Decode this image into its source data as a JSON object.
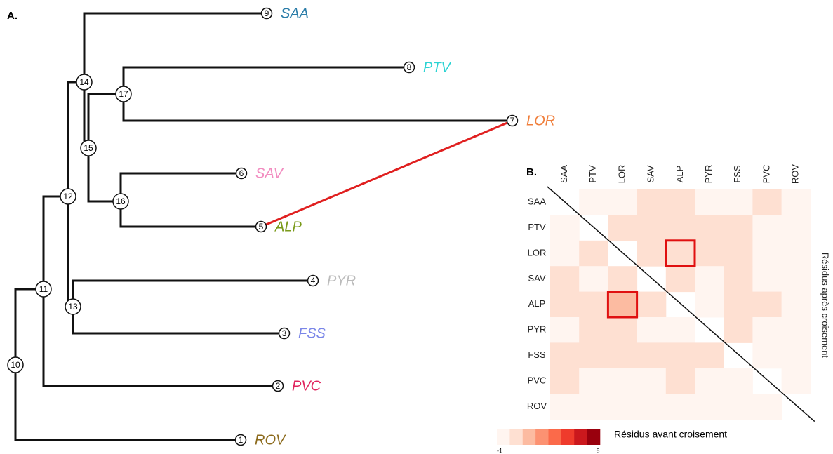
{
  "panel_a": {
    "label": "A.",
    "nodes": [
      {
        "label": "10"
      },
      {
        "label": "11"
      },
      {
        "label": "12"
      },
      {
        "label": "13"
      },
      {
        "label": "14"
      },
      {
        "label": "15"
      },
      {
        "label": "16"
      },
      {
        "label": "17"
      }
    ],
    "leaves": [
      {
        "number": "9",
        "name": "SAA",
        "color": "#2a7ca8"
      },
      {
        "number": "8",
        "name": "PTV",
        "color": "#2cd3d3"
      },
      {
        "number": "7",
        "name": "LOR",
        "color": "#f07f3c"
      },
      {
        "number": "6",
        "name": "SAV",
        "color": "#f28cc0"
      },
      {
        "number": "5",
        "name": "ALP",
        "color": "#7a9a1a"
      },
      {
        "number": "4",
        "name": "PYR",
        "color": "#bbbbbb"
      },
      {
        "number": "3",
        "name": "FSS",
        "color": "#7a86e8"
      },
      {
        "number": "2",
        "name": "PVC",
        "color": "#e0245e"
      },
      {
        "number": "1",
        "name": "ROV",
        "color": "#8c6a1c"
      }
    ]
  },
  "panel_b": {
    "label": "B.",
    "columns": [
      "SAA",
      "PTV",
      "LOR",
      "SAV",
      "ALP",
      "PYR",
      "FSS",
      "PVC",
      "ROV"
    ],
    "rows": [
      "SAA",
      "PTV",
      "LOR",
      "SAV",
      "ALP",
      "PYR",
      "FSS",
      "PVC",
      "ROV"
    ],
    "values": [
      [
        null,
        -1,
        -1,
        0,
        0,
        -1,
        -1,
        0,
        -1
      ],
      [
        -1,
        null,
        0,
        0,
        0,
        0,
        0,
        -1,
        -1
      ],
      [
        -1,
        0,
        null,
        0,
        0,
        0,
        0,
        -1,
        -1
      ],
      [
        0,
        -1,
        0,
        null,
        0,
        -1,
        0,
        -1,
        -1
      ],
      [
        0,
        0,
        1,
        0,
        null,
        -1,
        0,
        0,
        -1
      ],
      [
        -1,
        0,
        0,
        -1,
        -1,
        null,
        0,
        -1,
        -1
      ],
      [
        0,
        0,
        0,
        0,
        0,
        0,
        null,
        -1,
        -1
      ],
      [
        0,
        -1,
        -1,
        -1,
        0,
        -1,
        -1,
        null,
        -1
      ],
      [
        -1,
        -1,
        -1,
        -1,
        -1,
        -1,
        -1,
        -1,
        null
      ]
    ],
    "right_label": "Résidus après croisement",
    "legend_label": "Résidus avant croisement",
    "scale": {
      "min": -1,
      "max": 6,
      "colors": [
        "#fff5f0",
        "#fee0d2",
        "#fcbba1",
        "#fc9272",
        "#fb6a4a",
        "#ef3b2c",
        "#cb181d",
        "#99000d"
      ]
    }
  }
}
